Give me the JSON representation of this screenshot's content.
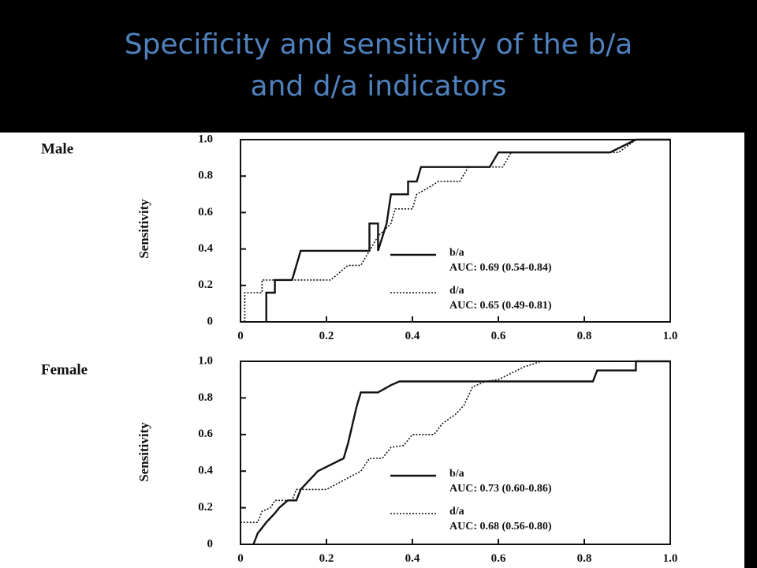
{
  "slide": {
    "title_line1": "Specificity and sensitivity of the b/a",
    "title_line2": "and d/a indicators"
  },
  "colors": {
    "background": "#000000",
    "title": "#4f81bd",
    "figure": "#ffffff",
    "ink": "#111111"
  },
  "chart_data": [
    {
      "type": "line",
      "panel_label": "Male",
      "ylabel": "Sensitivity",
      "xlabel": "",
      "xlim": [
        0,
        1.0
      ],
      "ylim": [
        0,
        1.0
      ],
      "x_ticks": [
        "0",
        "0.2",
        "0.4",
        "0.6",
        "0.8",
        "1.0"
      ],
      "y_ticks": [
        "0",
        "0.2",
        "0.4",
        "0.6",
        "0.8",
        "1.0"
      ],
      "legend_position": "center-right",
      "series": [
        {
          "name": "b/a",
          "auc_text": "AUC: 0.69 (0.54-0.84)",
          "style": "solid",
          "points": [
            [
              0.06,
              0
            ],
            [
              0.06,
              0.16
            ],
            [
              0.08,
              0.16
            ],
            [
              0.08,
              0.23
            ],
            [
              0.12,
              0.23
            ],
            [
              0.14,
              0.39
            ],
            [
              0.3,
              0.39
            ],
            [
              0.3,
              0.54
            ],
            [
              0.32,
              0.54
            ],
            [
              0.32,
              0.39
            ],
            [
              0.34,
              0.54
            ],
            [
              0.35,
              0.7
            ],
            [
              0.39,
              0.7
            ],
            [
              0.39,
              0.77
            ],
            [
              0.41,
              0.77
            ],
            [
              0.42,
              0.85
            ],
            [
              0.58,
              0.85
            ],
            [
              0.6,
              0.93
            ],
            [
              0.86,
              0.93
            ],
            [
              0.92,
              1.0
            ],
            [
              1.0,
              1.0
            ]
          ]
        },
        {
          "name": "d/a",
          "auc_text": "AUC: 0.65 (0.49-0.81)",
          "style": "dotted",
          "points": [
            [
              0.01,
              0
            ],
            [
              0.01,
              0.16
            ],
            [
              0.05,
              0.16
            ],
            [
              0.05,
              0.23
            ],
            [
              0.08,
              0.23
            ],
            [
              0.08,
              0.23
            ],
            [
              0.21,
              0.23
            ],
            [
              0.25,
              0.31
            ],
            [
              0.28,
              0.31
            ],
            [
              0.3,
              0.39
            ],
            [
              0.32,
              0.47
            ],
            [
              0.35,
              0.54
            ],
            [
              0.36,
              0.62
            ],
            [
              0.4,
              0.62
            ],
            [
              0.41,
              0.7
            ],
            [
              0.44,
              0.74
            ],
            [
              0.46,
              0.77
            ],
            [
              0.51,
              0.77
            ],
            [
              0.53,
              0.85
            ],
            [
              0.61,
              0.85
            ],
            [
              0.63,
              0.93
            ],
            [
              0.65,
              0.93
            ],
            [
              0.88,
              0.93
            ],
            [
              0.92,
              1.0
            ],
            [
              1.0,
              1.0
            ]
          ]
        }
      ]
    },
    {
      "type": "line",
      "panel_label": "Female",
      "ylabel": "Sensitivity",
      "xlabel": "",
      "xlim": [
        0,
        1.0
      ],
      "ylim": [
        0,
        1.0
      ],
      "x_ticks": [
        "0",
        "0.2",
        "0.4",
        "0.6",
        "0.8",
        "1.0"
      ],
      "y_ticks": [
        "0",
        "0.2",
        "0.4",
        "0.6",
        "0.8",
        "1.0"
      ],
      "legend_position": "center-right",
      "series": [
        {
          "name": "b/a",
          "auc_text": "AUC: 0.73 (0.60-0.86)",
          "style": "solid",
          "points": [
            [
              0.03,
              0
            ],
            [
              0.04,
              0.06
            ],
            [
              0.06,
              0.12
            ],
            [
              0.08,
              0.17
            ],
            [
              0.09,
              0.2
            ],
            [
              0.11,
              0.24
            ],
            [
              0.13,
              0.24
            ],
            [
              0.14,
              0.3
            ],
            [
              0.18,
              0.4
            ],
            [
              0.24,
              0.47
            ],
            [
              0.25,
              0.55
            ],
            [
              0.26,
              0.65
            ],
            [
              0.27,
              0.75
            ],
            [
              0.28,
              0.83
            ],
            [
              0.32,
              0.83
            ],
            [
              0.35,
              0.87
            ],
            [
              0.37,
              0.89
            ],
            [
              0.82,
              0.89
            ],
            [
              0.83,
              0.95
            ],
            [
              0.92,
              0.95
            ],
            [
              0.92,
              1.0
            ],
            [
              1.0,
              1.0
            ]
          ]
        },
        {
          "name": "d/a",
          "auc_text": "AUC: 0.68 (0.56-0.80)",
          "style": "dotted",
          "points": [
            [
              0,
              0.05
            ],
            [
              0,
              0.12
            ],
            [
              0.04,
              0.12
            ],
            [
              0.05,
              0.18
            ],
            [
              0.07,
              0.2
            ],
            [
              0.08,
              0.24
            ],
            [
              0.12,
              0.24
            ],
            [
              0.13,
              0.3
            ],
            [
              0.2,
              0.3
            ],
            [
              0.24,
              0.35
            ],
            [
              0.28,
              0.4
            ],
            [
              0.3,
              0.47
            ],
            [
              0.33,
              0.47
            ],
            [
              0.35,
              0.53
            ],
            [
              0.38,
              0.54
            ],
            [
              0.4,
              0.6
            ],
            [
              0.45,
              0.6
            ],
            [
              0.47,
              0.66
            ],
            [
              0.5,
              0.71
            ],
            [
              0.52,
              0.76
            ],
            [
              0.54,
              0.86
            ],
            [
              0.57,
              0.89
            ],
            [
              0.6,
              0.9
            ],
            [
              0.66,
              0.97
            ],
            [
              0.7,
              1.0
            ],
            [
              1.0,
              1.0
            ]
          ]
        }
      ]
    }
  ]
}
